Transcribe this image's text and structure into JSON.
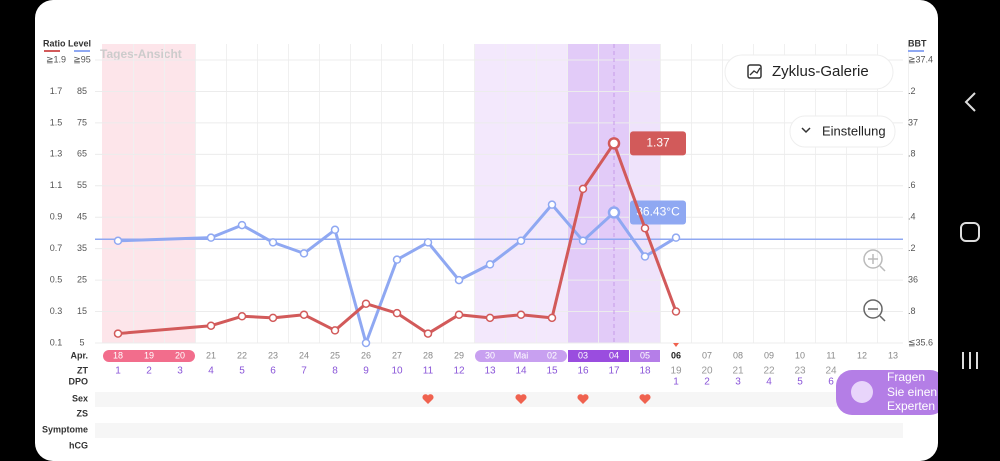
{
  "chart_data": {
    "type": "line",
    "view_label": "Tages-Ansicht",
    "y_title": "Ratio Level",
    "y2_title": "BBT",
    "ylim": [
      0.1,
      1.9
    ],
    "yticks": [
      0.1,
      0.3,
      0.5,
      0.7,
      0.9,
      1.1,
      1.3,
      1.5,
      1.7,
      {
        "value": 1.9,
        "label": "≧1.9"
      }
    ],
    "lh_lim": [
      5,
      95
    ],
    "lh_ticks": [
      5,
      15,
      25,
      35,
      45,
      55,
      65,
      75,
      85,
      {
        "value": 95,
        "label": "≧95"
      }
    ],
    "y2lim": [
      35.6,
      37.4
    ],
    "y2ticks": [
      {
        "value": 35.6,
        "label": "≦35.6"
      },
      {
        "value": 35.8,
        "label": ".8"
      },
      36,
      {
        "value": 36.2,
        "label": ".2"
      },
      {
        "value": 36.4,
        "label": ".4"
      },
      {
        "value": 36.6,
        "label": ".6"
      },
      {
        "value": 36.8,
        "label": ".8"
      },
      37,
      {
        "value": 37.2,
        "label": ".2"
      },
      {
        "value": 37.4,
        "label": "≧37.4"
      }
    ],
    "grid": true,
    "month_label": "Apr.",
    "categories": [
      "18",
      "19",
      "20",
      "21",
      "22",
      "23",
      "24",
      "25",
      "26",
      "27",
      "28",
      "29",
      "30",
      "Mai",
      "02",
      "03",
      "04",
      "05",
      "06",
      "07",
      "08",
      "09",
      "10",
      "11",
      "12",
      "13"
    ],
    "row_labels": {
      "zt": "ZT",
      "dpo": "DPO",
      "sex": "Sex",
      "zs": "ZS",
      "symptoms": "Symptome",
      "hcg": "hCG"
    },
    "zt": [
      1,
      2,
      3,
      4,
      5,
      6,
      7,
      8,
      9,
      10,
      11,
      12,
      13,
      14,
      15,
      16,
      17,
      18,
      19,
      20,
      21,
      22,
      23,
      24,
      null,
      null
    ],
    "dpo": [
      null,
      null,
      null,
      null,
      null,
      null,
      null,
      null,
      null,
      null,
      null,
      null,
      null,
      null,
      null,
      null,
      null,
      null,
      1,
      2,
      3,
      4,
      5,
      6,
      null,
      null
    ],
    "sex": [
      false,
      false,
      false,
      false,
      false,
      false,
      false,
      false,
      false,
      false,
      true,
      false,
      false,
      true,
      false,
      true,
      false,
      true,
      false,
      false,
      false,
      false,
      false,
      false,
      false,
      false
    ],
    "series": [
      {
        "name": "BBT",
        "axis": "y2",
        "color": "#8fa8f2",
        "x": [
          1,
          4,
          5,
          6,
          7,
          8,
          9,
          10,
          11,
          12,
          13,
          14,
          15,
          16,
          17,
          18,
          19
        ],
        "values": [
          36.25,
          36.27,
          36.35,
          36.24,
          36.17,
          36.32,
          35.6,
          36.13,
          36.24,
          36.0,
          36.1,
          36.25,
          36.48,
          36.25,
          36.43,
          36.15,
          36.27
        ],
        "value_labels": [
          null,
          null,
          null,
          null,
          null,
          null,
          null,
          null,
          null,
          null,
          null,
          null,
          null,
          null,
          "36.43°C",
          null,
          null
        ]
      },
      {
        "name": "Ratio Level",
        "axis": "y",
        "color": "#d25a5a",
        "x": [
          1,
          4,
          5,
          6,
          7,
          8,
          9,
          10,
          11,
          12,
          13,
          14,
          15,
          16,
          17,
          18,
          19
        ],
        "values": [
          0.16,
          0.21,
          0.27,
          0.26,
          0.28,
          0.18,
          0.35,
          0.29,
          0.16,
          0.28,
          0.26,
          0.28,
          0.26,
          1.08,
          1.37,
          0.83,
          0.3
        ],
        "value_labels": [
          null,
          null,
          null,
          null,
          null,
          null,
          null,
          null,
          null,
          null,
          null,
          null,
          null,
          null,
          "1.37",
          null,
          null
        ]
      }
    ],
    "cover_line": {
      "axis": "y2",
      "value": 36.26,
      "color": "#8fa8f2"
    }
  },
  "ui": {
    "gallery_button": "Zyklus-Galerie",
    "settings_button": "Einstellung",
    "ask_button": [
      "Fragen",
      "Sie einen",
      "Experten"
    ]
  }
}
